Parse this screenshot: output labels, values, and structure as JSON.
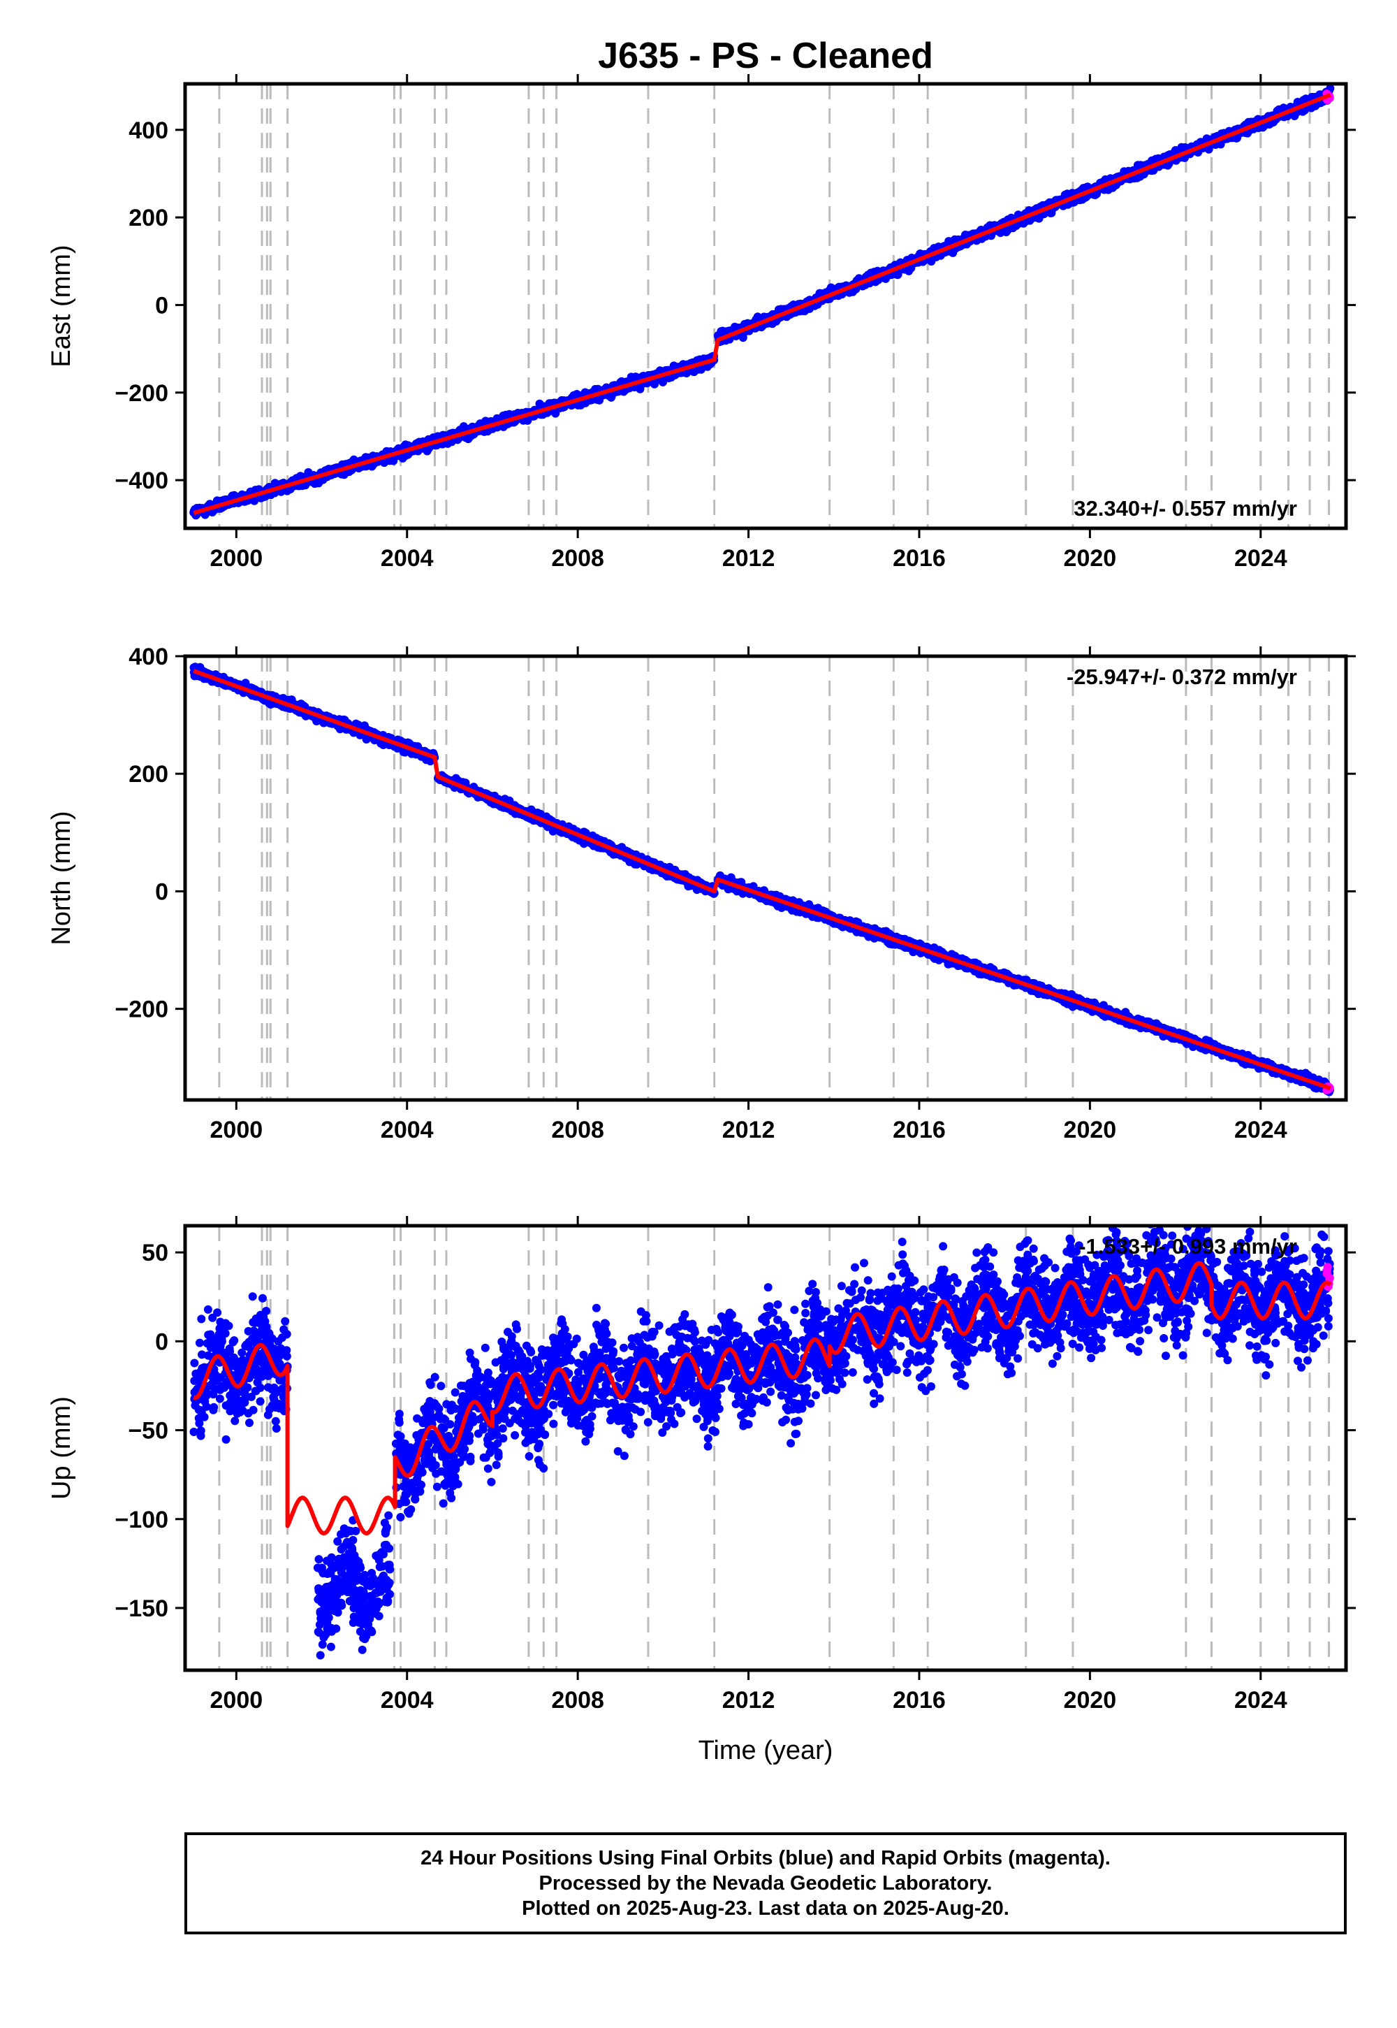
{
  "title": "J635  - PS - Cleaned",
  "colors": {
    "final_orbits": "#0000ff",
    "rapid_orbits": "#ff00ff",
    "model": "#ff0000",
    "events": "#bbbbbb"
  },
  "x_axis": {
    "label": "Time (year)",
    "range": [
      1998.8,
      2026.0
    ],
    "ticks": [
      2000,
      2004,
      2008,
      2012,
      2016,
      2020,
      2024
    ],
    "tick_labels": [
      "2000",
      "2004",
      "2008",
      "2012",
      "2016",
      "2020",
      "2024"
    ]
  },
  "events": [
    1999.6,
    2000.6,
    2000.72,
    2000.8,
    2001.2,
    2003.7,
    2003.85,
    2004.65,
    2004.92,
    2006.85,
    2007.2,
    2007.5,
    2009.65,
    2011.2,
    2013.9,
    2015.4,
    2016.2,
    2018.5,
    2019.6,
    2022.25,
    2022.85,
    2024.0,
    2024.65,
    2025.15,
    2025.6
  ],
  "chart_data": [
    {
      "type": "scatter",
      "name": "east",
      "ylabel": "East (mm)",
      "ylim": [
        -510,
        505
      ],
      "yticks": [
        -400,
        -200,
        0,
        200,
        400
      ],
      "ytick_labels": [
        "−400",
        "−200",
        "0",
        "200",
        "400"
      ],
      "velocity_label": "32.340+/- 0.557 mm/yr",
      "velocity_position": "bottom-right",
      "model_segments": [
        {
          "x": [
            1999.0,
            2011.2
          ],
          "y": [
            -475,
            -125
          ]
        },
        {
          "x": [
            2011.2,
            2011.28
          ],
          "y": [
            -125,
            -80
          ]
        },
        {
          "x": [
            2011.28,
            2025.63
          ],
          "y": [
            -80,
            480
          ]
        }
      ],
      "scatter_noise": 6
    },
    {
      "type": "scatter",
      "name": "north",
      "ylabel": "North (mm)",
      "ylim": [
        -355,
        400
      ],
      "yticks": [
        -200,
        0,
        200,
        400
      ],
      "ytick_labels": [
        "−200",
        "0",
        "200",
        "400"
      ],
      "velocity_label": "-25.947+/- 0.372 mm/yr",
      "velocity_position": "top-right",
      "model_segments": [
        {
          "x": [
            1999.0,
            2004.65
          ],
          "y": [
            375,
            228
          ]
        },
        {
          "x": [
            2004.65,
            2004.72
          ],
          "y": [
            228,
            195
          ]
        },
        {
          "x": [
            2004.72,
            2011.2
          ],
          "y": [
            195,
            0
          ]
        },
        {
          "x": [
            2011.2,
            2011.28
          ],
          "y": [
            0,
            20
          ]
        },
        {
          "x": [
            2011.28,
            2025.63
          ],
          "y": [
            20,
            -335
          ]
        }
      ],
      "scatter_noise": 4
    },
    {
      "type": "scatter",
      "name": "up",
      "ylabel": "Up (mm)",
      "xlabel": "Time (year)",
      "ylim": [
        -185,
        65
      ],
      "yticks": [
        -150,
        -100,
        -50,
        0,
        50
      ],
      "ytick_labels": [
        "−150",
        "−100",
        "−50",
        "0",
        "50"
      ],
      "velocity_label": "-1.533+/- 0.993 mm/yr",
      "velocity_position": "top-right",
      "model_segments": [
        {
          "x": [
            1999.0,
            2001.2
          ],
          "y": [
            -22,
            -8
          ]
        },
        {
          "x": [
            2001.2,
            2003.72
          ],
          "y": [
            -98,
            -98
          ]
        },
        {
          "x": [
            2003.72,
            2006.0
          ],
          "y": [
            -70,
            -38
          ]
        },
        {
          "x": [
            2006.0,
            2013.9
          ],
          "y": [
            -30,
            -8
          ]
        },
        {
          "x": [
            2013.9,
            2022.85
          ],
          "y": [
            3,
            35
          ]
        },
        {
          "x": [
            2022.85,
            2025.63
          ],
          "y": [
            23,
            23
          ]
        }
      ],
      "model_seasonal_amplitude": 10,
      "data_blocks": [
        {
          "x": [
            1999.0,
            2001.2
          ],
          "y": [
            -22,
            -8
          ],
          "spread": 30
        },
        {
          "x": [
            2001.9,
            2003.6
          ],
          "y": [
            -138,
            -138
          ],
          "spread": 28
        },
        {
          "x": [
            2003.72,
            2006.0
          ],
          "y": [
            -70,
            -38
          ],
          "spread": 30
        },
        {
          "x": [
            2006.0,
            2013.9
          ],
          "y": [
            -30,
            -8
          ],
          "spread": 30
        },
        {
          "x": [
            2013.9,
            2022.85
          ],
          "y": [
            3,
            35
          ],
          "spread": 30
        },
        {
          "x": [
            2022.85,
            2025.63
          ],
          "y": [
            23,
            23
          ],
          "spread": 30
        }
      ]
    }
  ],
  "footer": {
    "line1": "24 Hour Positions Using Final Orbits (blue) and Rapid Orbits (magenta).",
    "line2": "Processed by the Nevada Geodetic Laboratory.",
    "line3": "Plotted on 2025-Aug-23. Last data on 2025-Aug-20."
  }
}
